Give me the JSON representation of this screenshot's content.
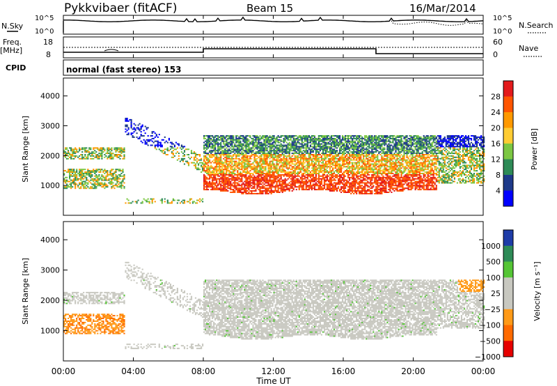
{
  "header": {
    "radar_title": "Pykkvibaer (fitACF)",
    "beam": "Beam 15",
    "date": "16/Mar/2014"
  },
  "params_panel": {
    "nsky_label": "N.Sky",
    "nsearch_label": "N.Search",
    "freq_label_1": "Freq.",
    "freq_label_2": "[MHz]",
    "nave_label": "Nave",
    "cpid_label": "CPID",
    "cpid_text": "normal (fast stereo) 153",
    "noise_ticks_left": [
      "10^5",
      "10^0"
    ],
    "noise_ticks_right": [
      "10^5",
      "10^0"
    ],
    "freq_ticks": [
      "18",
      "8"
    ],
    "nave_ticks": [
      "60",
      "0"
    ]
  },
  "chart_data": [
    {
      "type": "heatmap",
      "name": "power",
      "ylabel": "Slant Range [km]",
      "yticks": [
        1000,
        2000,
        3000,
        4000
      ],
      "ylim": [
        0,
        4600
      ],
      "xlim_hours": [
        0,
        24
      ],
      "colorbar": {
        "label": "Power [dB]",
        "ticks": [
          "28",
          "24",
          "20",
          "16",
          "12",
          "8",
          "4"
        ],
        "colors": [
          "#e31a1c",
          "#ff5500",
          "#ff9900",
          "#ffcc33",
          "#7cc742",
          "#2e8b57",
          "#1e3a8a",
          "#0000ff"
        ]
      }
    },
    {
      "type": "heatmap",
      "name": "velocity",
      "ylabel": "Slant Range [km]",
      "yticks": [
        1000,
        2000,
        3000,
        4000
      ],
      "ylim": [
        0,
        4600
      ],
      "xlim_hours": [
        0,
        24
      ],
      "colorbar": {
        "label": "Velocity [m s⁻¹]",
        "ticks": [
          "1000",
          "500",
          "100",
          "25",
          "−25",
          "−100",
          "−500",
          "−1000"
        ],
        "colors": [
          "#1e3ca8",
          "#2e8b57",
          "#55c535",
          "#c8c8c0",
          "#c8c8c0",
          "#ff9a18",
          "#ff6a00",
          "#e60000"
        ]
      }
    }
  ],
  "xaxis": {
    "ticks": [
      "00:00",
      "04:00",
      "08:00",
      "12:00",
      "16:00",
      "20:00",
      "00:00"
    ],
    "label": "Time UT"
  }
}
